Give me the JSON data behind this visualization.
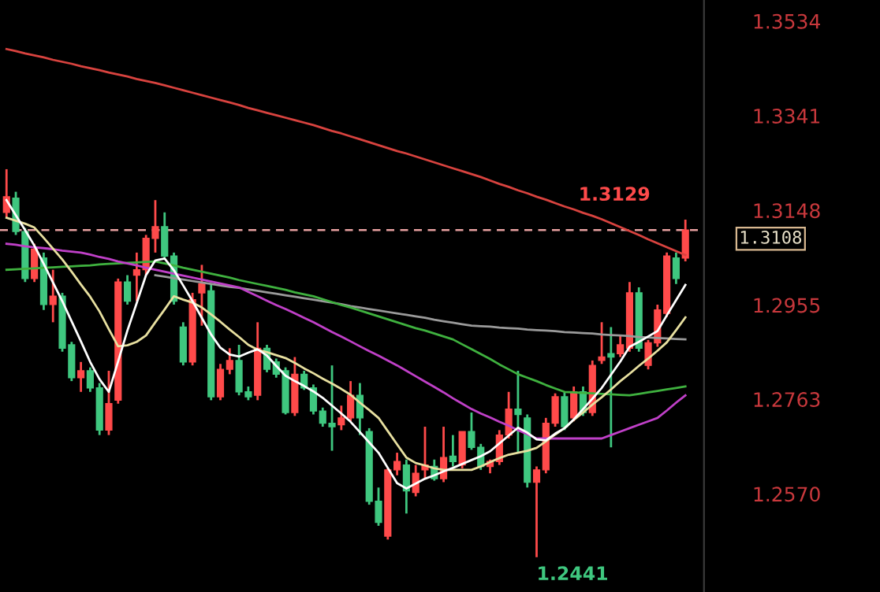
{
  "chart_data": {
    "type": "candlestick",
    "categories": [
      null,
      null,
      null,
      null,
      null,
      null,
      null,
      null,
      null,
      null,
      null,
      null,
      null,
      null,
      null,
      null,
      null,
      null,
      null,
      null,
      null,
      null,
      null,
      null,
      null,
      null,
      null,
      null,
      null,
      null,
      null,
      null,
      null,
      null,
      null,
      null,
      null,
      null,
      null,
      null,
      null,
      null,
      null,
      null,
      null,
      null,
      null,
      null,
      null,
      null,
      null,
      null,
      null,
      null,
      null,
      null,
      null,
      null,
      null,
      null,
      null,
      null,
      null,
      null,
      null,
      null,
      null,
      null,
      null,
      null,
      null,
      null,
      null,
      null
    ],
    "ohlc": [
      [
        1.3144,
        1.3232,
        1.3134,
        1.3176
      ],
      [
        1.3173,
        1.3186,
        1.3098,
        1.3105
      ],
      [
        1.3105,
        1.3112,
        1.3002,
        1.3009
      ],
      [
        1.3009,
        1.308,
        1.3002,
        1.3069
      ],
      [
        1.3051,
        1.3062,
        1.2945,
        1.2956
      ],
      [
        1.2956,
        1.3027,
        1.292,
        1.2973
      ],
      [
        1.2973,
        1.298,
        1.286,
        1.2867
      ],
      [
        1.2874,
        1.288,
        1.28,
        1.2807
      ],
      [
        1.2807,
        1.2839,
        1.2778,
        1.2821
      ],
      [
        1.2821,
        1.2828,
        1.2778,
        1.2786
      ],
      [
        1.2786,
        1.2796,
        1.269,
        1.27
      ],
      [
        1.27,
        1.2821,
        1.269,
        1.2754
      ],
      [
        1.2761,
        1.3009,
        1.2754,
        1.3002
      ],
      [
        1.3002,
        1.3016,
        1.2956,
        1.2963
      ],
      [
        1.3016,
        1.3062,
        1.2963,
        1.3027
      ],
      [
        1.3027,
        1.3098,
        1.3016,
        1.3091
      ],
      [
        1.3091,
        1.3169,
        1.3062,
        1.3115
      ],
      [
        1.3115,
        1.3144,
        1.3051,
        1.3055
      ],
      [
        1.3055,
        1.3062,
        1.2956,
        1.2963
      ],
      [
        1.291,
        1.292,
        1.2832,
        1.2839
      ],
      [
        1.2839,
        1.298,
        1.2832,
        1.2966
      ],
      [
        1.298,
        1.3037,
        1.2913,
        1.2998
      ],
      [
        1.2984,
        1.2998,
        1.2761,
        1.2768
      ],
      [
        1.2768,
        1.2835,
        1.2761,
        1.2824
      ],
      [
        1.2824,
        1.2867,
        1.2814,
        1.2842
      ],
      [
        1.2842,
        1.2874,
        1.2771,
        1.2778
      ],
      [
        1.2778,
        1.2789,
        1.2761,
        1.2768
      ],
      [
        1.2771,
        1.292,
        1.2761,
        1.2867
      ],
      [
        1.2867,
        1.2874,
        1.2818,
        1.2824
      ],
      [
        1.2839,
        1.2846,
        1.2807,
        1.2814
      ],
      [
        1.2821,
        1.2828,
        1.2732,
        1.2736
      ],
      [
        1.2736,
        1.2849,
        1.2729,
        1.2814
      ],
      [
        1.2814,
        1.2821,
        1.2782,
        1.2786
      ],
      [
        1.2786,
        1.2793,
        1.2732,
        1.2739
      ],
      [
        1.2739,
        1.2746,
        1.2707,
        1.2714
      ],
      [
        1.2714,
        1.2832,
        1.2658,
        1.2707
      ],
      [
        1.2711,
        1.275,
        1.27,
        1.2725
      ],
      [
        1.2725,
        1.28,
        1.2718,
        1.2771
      ],
      [
        1.2771,
        1.2796,
        1.269,
        1.2725
      ],
      [
        1.2697,
        1.2704,
        1.2548,
        1.2555
      ],
      [
        1.2555,
        1.2583,
        1.2505,
        1.2512
      ],
      [
        1.2484,
        1.2622,
        1.2477,
        1.2619
      ],
      [
        1.2619,
        1.2654,
        1.2608,
        1.2636
      ],
      [
        1.2629,
        1.264,
        1.253,
        1.2576
      ],
      [
        1.2573,
        1.2629,
        1.2565,
        1.2612
      ],
      [
        1.2619,
        1.2707,
        1.2601,
        1.2629
      ],
      [
        1.2626,
        1.264,
        1.2597,
        1.2601
      ],
      [
        1.2601,
        1.2707,
        1.2594,
        1.2644
      ],
      [
        1.2647,
        1.269,
        1.2626,
        1.2636
      ],
      [
        1.2629,
        1.2697,
        1.2622,
        1.2697
      ],
      [
        1.2697,
        1.2736,
        1.266,
        1.2665
      ],
      [
        1.2665,
        1.2672,
        1.2619,
        1.2626
      ],
      [
        1.2626,
        1.264,
        1.2612,
        1.2636
      ],
      [
        1.2636,
        1.27,
        1.2629,
        1.269
      ],
      [
        1.269,
        1.2778,
        1.2683,
        1.2743
      ],
      [
        1.2743,
        1.2821,
        1.2654,
        1.2732
      ],
      [
        1.2725,
        1.2732,
        1.2583,
        1.2594
      ],
      [
        1.2594,
        1.2626,
        1.2441,
        1.2619
      ],
      [
        1.2619,
        1.2725,
        1.2612,
        1.2714
      ],
      [
        1.2714,
        1.2775,
        1.2707,
        1.2768
      ],
      [
        1.2768,
        1.2778,
        1.27,
        1.2707
      ],
      [
        1.2725,
        1.2789,
        1.2718,
        1.2778
      ],
      [
        1.2778,
        1.2789,
        1.2729,
        1.2736
      ],
      [
        1.2736,
        1.2842,
        1.2729,
        1.2832
      ],
      [
        1.2842,
        1.292,
        1.2835,
        1.2849
      ],
      [
        1.2856,
        1.291,
        1.2665,
        1.2849
      ],
      [
        1.2856,
        1.2895,
        1.2849,
        1.2874
      ],
      [
        1.2867,
        1.3002,
        1.286,
        1.298
      ],
      [
        1.298,
        1.2991,
        1.286,
        1.2867
      ],
      [
        1.2832,
        1.2884,
        1.2824,
        1.2878
      ],
      [
        1.2878,
        1.2956,
        1.287,
        1.2945
      ],
      [
        1.2938,
        1.3062,
        1.2931,
        1.3055
      ],
      [
        1.3051,
        1.3062,
        1.2998,
        1.3009
      ],
      [
        1.3051,
        1.3129,
        1.3044,
        1.3108
      ]
    ],
    "colors": [
      "#ff4a4a",
      "#3fc77f",
      "#3fc77f",
      "#ff4a4a",
      "#3fc77f",
      "#ff4a4a",
      "#3fc77f",
      "#3fc77f",
      "#ff4a4a",
      "#3fc77f",
      "#3fc77f",
      "#ff4a4a",
      "#ff4a4a",
      "#3fc77f",
      "#ff4a4a",
      "#ff4a4a",
      "#ff4a4a",
      "#3fc77f",
      "#3fc77f",
      "#3fc77f",
      "#ff4a4a",
      "#ff4a4a",
      "#3fc77f",
      "#ff4a4a",
      "#ff4a4a",
      "#3fc77f",
      "#3fc77f",
      "#ff4a4a",
      "#3fc77f",
      "#3fc77f",
      "#3fc77f",
      "#ff4a4a",
      "#3fc77f",
      "#3fc77f",
      "#3fc77f",
      "#3fc77f",
      "#ff4a4a",
      "#ff4a4a",
      "#3fc77f",
      "#3fc77f",
      "#3fc77f",
      "#ff4a4a",
      "#ff4a4a",
      "#3fc77f",
      "#ff4a4a",
      "#ff4a4a",
      "#3fc77f",
      "#ff4a4a",
      "#3fc77f",
      "#ff4a4a",
      "#3fc77f",
      "#3fc77f",
      "#ff4a4a",
      "#ff4a4a",
      "#ff4a4a",
      "#3fc77f",
      "#3fc77f",
      "#ff4a4a",
      "#ff4a4a",
      "#ff4a4a",
      "#3fc77f",
      "#ff4a4a",
      "#3fc77f",
      "#ff4a4a",
      "#ff4a4a",
      "#3fc77f",
      "#ff4a4a",
      "#ff4a4a",
      "#3fc77f",
      "#ff4a4a",
      "#ff4a4a",
      "#ff4a4a",
      "#3fc77f",
      "#ff4a4a"
    ],
    "series": [
      {
        "type": "line",
        "color": "#d8433f",
        "values": [
          1.3477,
          1.3473,
          1.3468,
          1.3464,
          1.346,
          1.3455,
          1.3451,
          1.3447,
          1.3442,
          1.3438,
          1.3434,
          1.3429,
          1.3425,
          1.3421,
          1.3416,
          1.3412,
          1.3408,
          1.3403,
          1.3398,
          1.3393,
          1.3388,
          1.3383,
          1.3378,
          1.3373,
          1.3368,
          1.3363,
          1.3357,
          1.3352,
          1.3347,
          1.3342,
          1.3337,
          1.3332,
          1.3327,
          1.3322,
          1.3316,
          1.331,
          1.3305,
          1.3299,
          1.3293,
          1.3287,
          1.3281,
          1.3275,
          1.3269,
          1.3264,
          1.3258,
          1.3252,
          1.3246,
          1.324,
          1.3234,
          1.3228,
          1.3222,
          1.3216,
          1.3209,
          1.3202,
          1.3196,
          1.3189,
          1.3183,
          1.3176,
          1.317,
          1.3163,
          1.3156,
          1.315,
          1.3143,
          1.3137,
          1.313,
          1.3122,
          1.3114,
          1.3106,
          1.3098,
          1.3089,
          1.3081,
          1.3073,
          1.3065,
          1.3057
        ]
      },
      {
        "type": "line",
        "color": "#9a9a9a",
        "values": [
          null,
          null,
          null,
          null,
          null,
          null,
          null,
          null,
          null,
          null,
          null,
          null,
          null,
          null,
          null,
          null,
          1.3016,
          1.3013,
          1.301,
          1.3007,
          1.3004,
          1.3001,
          1.2998,
          1.2995,
          1.2992,
          1.299,
          1.2987,
          1.2984,
          1.2981,
          1.2978,
          1.2975,
          1.2972,
          1.2969,
          1.2966,
          1.2963,
          1.296,
          1.2957,
          1.2953,
          1.295,
          1.2947,
          1.2944,
          1.2941,
          1.2938,
          1.2935,
          1.2932,
          1.2929,
          1.2925,
          1.2922,
          1.2919,
          1.2916,
          1.2913,
          1.2912,
          1.2911,
          1.2909,
          1.2908,
          1.2907,
          1.2905,
          1.2904,
          1.2903,
          1.2902,
          1.29,
          1.2899,
          1.2898,
          1.2897,
          1.2895,
          1.2894,
          1.2893,
          1.2892,
          1.289,
          1.2889,
          1.2888,
          1.2887,
          1.2886,
          1.2885
        ]
      },
      {
        "type": "line",
        "color": "#3fb13f",
        "values": [
          1.3027,
          1.3028,
          1.3029,
          1.303,
          1.3031,
          1.3032,
          1.3033,
          1.3034,
          1.3035,
          1.3036,
          1.3038,
          1.3039,
          1.304,
          1.3041,
          1.3042,
          1.3043,
          1.3044,
          1.304,
          1.3036,
          1.3031,
          1.3027,
          1.3023,
          1.3019,
          1.3015,
          1.3011,
          1.3006,
          1.3002,
          1.2998,
          1.2994,
          1.299,
          1.2986,
          1.2981,
          1.2977,
          1.2973,
          1.2967,
          1.2961,
          1.2955,
          1.295,
          1.2944,
          1.2938,
          1.2932,
          1.2926,
          1.292,
          1.2914,
          1.2908,
          1.2903,
          1.2897,
          1.2891,
          1.2885,
          1.2875,
          1.2865,
          1.2855,
          1.2845,
          1.2834,
          1.2824,
          1.2814,
          1.2807,
          1.28,
          1.2792,
          1.2785,
          1.2778,
          1.2777,
          1.2776,
          1.2775,
          1.2774,
          1.2773,
          1.2772,
          1.2771,
          1.2774,
          1.2777,
          1.278,
          1.2783,
          1.2786,
          1.2789
        ]
      },
      {
        "type": "line",
        "color": "#c040c8",
        "values": [
          1.308,
          1.3078,
          1.3075,
          1.3073,
          1.3071,
          1.3069,
          1.3066,
          1.3064,
          1.3062,
          1.3058,
          1.3053,
          1.3049,
          1.3044,
          1.304,
          1.3036,
          1.3031,
          1.3027,
          1.3023,
          1.3019,
          1.3015,
          1.3011,
          1.3007,
          1.3003,
          1.2999,
          1.2995,
          1.2991,
          1.2982,
          1.2973,
          1.2964,
          1.2955,
          1.2947,
          1.2938,
          1.2929,
          1.292,
          1.291,
          1.29,
          1.2891,
          1.2881,
          1.2871,
          1.2861,
          1.2852,
          1.2842,
          1.2832,
          1.2821,
          1.281,
          1.2799,
          1.2788,
          1.2777,
          1.2765,
          1.2754,
          1.2743,
          1.2734,
          1.2726,
          1.2717,
          1.2709,
          1.27,
          1.2692,
          1.2683,
          1.2683,
          1.2683,
          1.2683,
          1.2683,
          1.2683,
          1.2683,
          1.2683,
          1.269,
          1.2697,
          1.2704,
          1.2711,
          1.2718,
          1.2725,
          1.274,
          1.2756,
          1.2771
        ]
      },
      {
        "type": "line",
        "color": "#e8e0a0",
        "values": [
          1.3133,
          1.3127,
          1.3121,
          1.3113,
          1.3092,
          1.307,
          1.3048,
          1.3023,
          1.2997,
          1.2972,
          1.2942,
          1.2906,
          1.2871,
          1.2873,
          1.288,
          1.2893,
          1.292,
          1.2946,
          1.2973,
          1.2966,
          1.296,
          1.295,
          1.2936,
          1.2921,
          1.2905,
          1.289,
          1.2874,
          1.2864,
          1.2859,
          1.2853,
          1.2847,
          1.2837,
          1.2826,
          1.2816,
          1.2805,
          1.2795,
          1.2784,
          1.2772,
          1.2756,
          1.2741,
          1.2725,
          1.2698,
          1.2671,
          1.2644,
          1.2633,
          1.2628,
          1.2622,
          1.2619,
          1.2619,
          1.2619,
          1.2619,
          1.2626,
          1.2635,
          1.2643,
          1.265,
          1.2654,
          1.2658,
          1.2664,
          1.2677,
          1.2691,
          1.2704,
          1.2721,
          1.2736,
          1.2752,
          1.2767,
          1.2783,
          1.28,
          1.2815,
          1.2831,
          1.2846,
          1.2862,
          1.2879,
          1.2904,
          1.293
        ]
      },
      {
        "type": "line",
        "color": "#ffffff",
        "values": [
          1.3169,
          1.3138,
          1.3108,
          1.3076,
          1.3039,
          1.3001,
          1.2963,
          1.2922,
          1.2881,
          1.2839,
          1.2804,
          1.2778,
          1.284,
          1.2903,
          1.2959,
          1.3016,
          1.3046,
          1.305,
          1.3026,
          1.2995,
          1.2963,
          1.2929,
          1.2895,
          1.2868,
          1.2854,
          1.285,
          1.2858,
          1.2865,
          1.2852,
          1.2831,
          1.2811,
          1.28,
          1.279,
          1.2779,
          1.2766,
          1.275,
          1.2734,
          1.2717,
          1.2696,
          1.2675,
          1.2654,
          1.2623,
          1.2592,
          1.2581,
          1.2591,
          1.2601,
          1.2608,
          1.2616,
          1.2623,
          1.2631,
          1.2639,
          1.2647,
          1.2657,
          1.2673,
          1.2689,
          1.2705,
          1.2695,
          1.2681,
          1.2679,
          1.2693,
          1.2704,
          1.2722,
          1.2743,
          1.2764,
          1.2786,
          1.2813,
          1.284,
          1.287,
          1.288,
          1.2891,
          1.2902,
          1.2934,
          1.2965,
          1.2996
        ]
      }
    ],
    "ylim": [
      1.237,
      1.3577
    ],
    "yticks": [
      1.3534,
      1.3341,
      1.3148,
      1.2955,
      1.2763,
      {
        "value": 1.257,
        "label": "1.2570"
      }
    ],
    "tick_labels": "y",
    "grid": false,
    "ref_lines": [
      {
        "axis": "y",
        "value": 1.3108,
        "label": "1.3108",
        "color": "#e8a0a0",
        "line_style": "dashed"
      }
    ],
    "annotations": [
      {
        "text": "1.3129",
        "y": 1.3129
      },
      "1.2441"
    ]
  }
}
